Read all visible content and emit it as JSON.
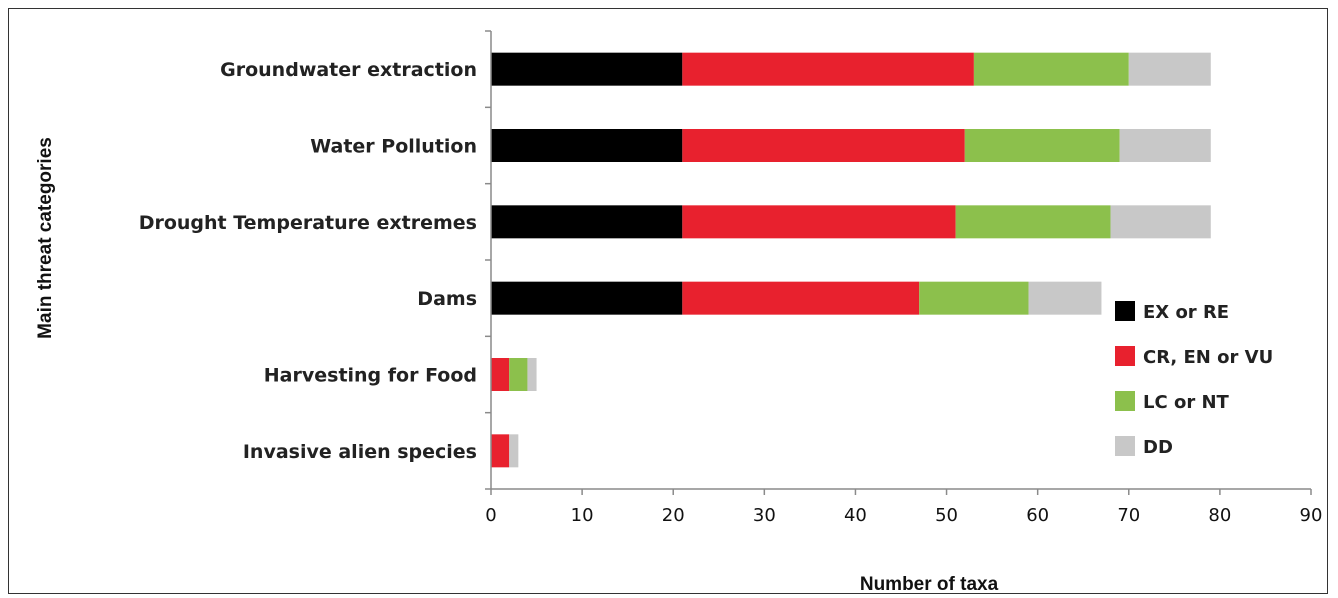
{
  "chart_data": {
    "type": "bar",
    "orientation": "horizontal",
    "stacked": true,
    "categories": [
      "Groundwater extraction",
      "Water Pollution",
      "Drought Temperature extremes",
      "Dams",
      "Harvesting for Food",
      "Invasive alien species"
    ],
    "series": [
      {
        "name": "EX or RE",
        "color": "#000000",
        "values": [
          21,
          21,
          21,
          21,
          0,
          0
        ]
      },
      {
        "name": "CR, EN or VU",
        "color": "#e8212e",
        "values": [
          32,
          31,
          30,
          26,
          2,
          2
        ]
      },
      {
        "name": "LC or NT",
        "color": "#8cc04c",
        "values": [
          17,
          17,
          17,
          12,
          2,
          0
        ]
      },
      {
        "name": "DD",
        "color": "#c8c8c8",
        "values": [
          9,
          10,
          11,
          8,
          1,
          1
        ]
      }
    ],
    "xlabel": "Number of taxa",
    "ylabel": "Main threat categories",
    "xlim": [
      0,
      90
    ],
    "xticks": [
      0,
      10,
      20,
      30,
      40,
      50,
      60,
      70,
      80,
      90
    ],
    "grid": false,
    "legend_position": "right"
  }
}
